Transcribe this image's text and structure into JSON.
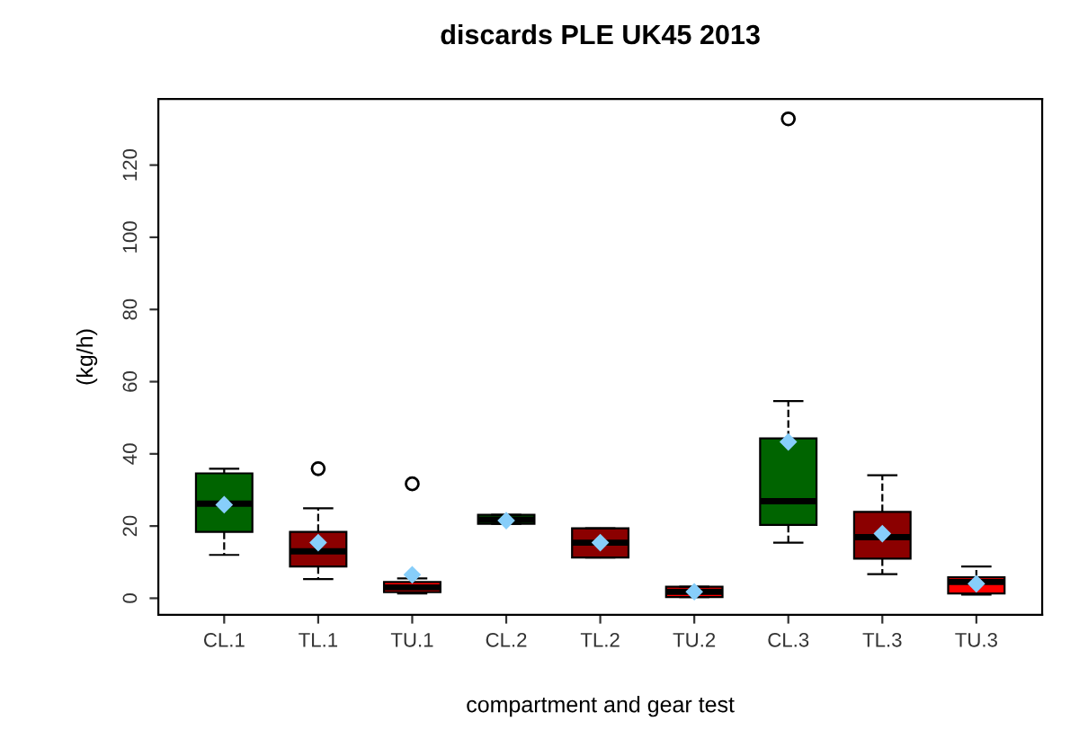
{
  "chart_data": {
    "type": "box",
    "title": "discards PLE UK45 2013",
    "xlabel": "compartment and gear test",
    "ylabel": "(kg/h)",
    "categories": [
      "CL.1",
      "TL.1",
      "TU.1",
      "CL.2",
      "TL.2",
      "TU.2",
      "CL.3",
      "TL.3",
      "TU.3"
    ],
    "colors": [
      "#006400",
      "#8b0000",
      "#ff0000",
      "#006400",
      "#8b0000",
      "#ff0000",
      "#006400",
      "#8b0000",
      "#ff0000"
    ],
    "boxes": [
      {
        "low": 12.0,
        "q1": 18.4,
        "median": 26.2,
        "q3": 34.6,
        "high": 35.9,
        "mean": 25.9
      },
      {
        "low": 5.3,
        "q1": 8.8,
        "median": 13.0,
        "q3": 18.4,
        "high": 24.9,
        "mean": 15.4,
        "outliers": [
          35.9
        ]
      },
      {
        "low": 1.3,
        "q1": 1.7,
        "median": 3.0,
        "q3": 4.5,
        "high": 5.5,
        "mean": 6.5,
        "outliers": [
          31.7
        ]
      },
      {
        "low": 20.6,
        "q1": 20.6,
        "median": 21.8,
        "q3": 23.1,
        "high": 23.1,
        "mean": 21.5
      },
      {
        "low": 11.3,
        "q1": 11.3,
        "median": 15.4,
        "q3": 19.4,
        "high": 19.4,
        "mean": 15.4
      },
      {
        "low": 0.3,
        "q1": 0.3,
        "median": 1.8,
        "q3": 3.2,
        "high": 3.2,
        "mean": 1.8
      },
      {
        "low": 15.4,
        "q1": 20.3,
        "median": 26.9,
        "q3": 44.3,
        "high": 54.6,
        "mean": 43.3,
        "outliers": [
          132.8
        ]
      },
      {
        "low": 6.7,
        "q1": 11.0,
        "median": 16.9,
        "q3": 23.9,
        "high": 34.1,
        "mean": 17.9
      },
      {
        "low": 1.0,
        "q1": 1.3,
        "median": 4.5,
        "q3": 5.8,
        "high": 8.8,
        "mean": 4.0
      }
    ],
    "ylim": [
      -4.6,
      138.3
    ],
    "yticks": [
      0,
      20,
      40,
      60,
      80,
      100,
      120
    ],
    "grid": false
  }
}
